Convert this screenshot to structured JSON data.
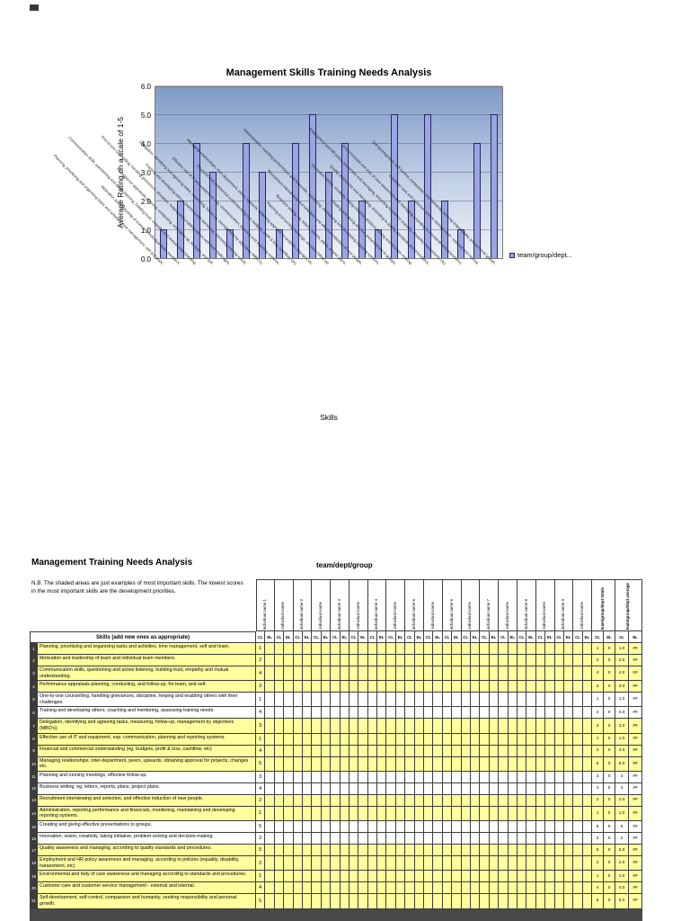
{
  "chart": {
    "legend": {
      "label": "team/group/dept...",
      "swatch_color": "#9aa5e3"
    }
  },
  "chart_data": {
    "type": "bar",
    "title": "Management Skills Training Needs Analysis",
    "xlabel": "Skills",
    "ylabel": "Average Rating on a scale of 1-5",
    "ylim": [
      0,
      6
    ],
    "ytick_labels": [
      "0.0",
      "1.0",
      "2.0",
      "3.0",
      "4.0",
      "5.0",
      "6.0"
    ],
    "grid": true,
    "legend_position": "right",
    "bar_color": "#9aa5e3",
    "series": [
      {
        "name": "team/group/dept...",
        "values": [
          1,
          2,
          4,
          3,
          1,
          4,
          3,
          1,
          4,
          5,
          3,
          4,
          2,
          1,
          5,
          2,
          5,
          2,
          1,
          4,
          5
        ]
      }
    ],
    "categories": [
      "Planning, prioritising and organising tasks and activities, time management, self and team.",
      "Motivation and leadership of team and individual team members.",
      "Communication skills, questioning and active listening, building trust, empathy and mutual understanding.",
      "Performance appraisals planning, conducting, and follow-up, for team, and self.",
      "One-to-one counselling, handling grievances, discipline, helping and enabling others with their challenges.",
      "Training and developing others, coaching and mentoring, assessing training needs.",
      "Delegation, identifying and agreeing tasks, measuring, follow-up, management by objectives (MBO's).",
      "Effective use of IT and equipment, esp. communication, planning and reporting systems.",
      "Financial and commercial understanding (eg. budgets, profit & loss, cashflow, etc)",
      "Managing relationships, inter-department, peers, upwards, obtaining approval for projects, changes etc.",
      "Planning and running meetings, effective follow-up.",
      "Business writing, eg. letters, reports, plans, project plans.",
      "Recruitment interviewing and selection, and effective induction of new people.",
      "Administration, reporting performance and financials, monitoring, maintaining and developing reporting systems.",
      "Creating and giving effective presentations to groups.",
      "Innovation, vision, creativity, taking initiative, problem-solving and decision-making.",
      "Quality awareness and managing, according to quality standards and procedures.",
      "Employment and HR policy awareness and managing, according to policies (equality, disability, harassment, etc)",
      "Environmental and duty of care awareness and managing according to standards and procedures.",
      "Customer care and customer service management - external and internal.",
      "Self-development, self-control, compassion and humanity, seeking responsibility and personal growth."
    ]
  },
  "table": {
    "title": "Management Training Needs Analysis",
    "group_header": "team/dept/group",
    "note": "N.B. The shaded areas are just examples of most important skills. The lowest scores in the most important skills are the development priorities.",
    "skills_header": "Skills (add new ones as appropriate)",
    "sub_headers": [
      "CL",
      "EL"
    ],
    "individual_columns": [
      "individual name 1",
      "individual name",
      "individual name 2",
      "individual name",
      "individual name 3",
      "individual name",
      "individual name 4",
      "individual name",
      "individual name 5",
      "individual name",
      "individual name 6",
      "individual name",
      "individual name 7",
      "individual name",
      "individual name 8",
      "individual name",
      "individual name 9",
      "individual name"
    ],
    "totals_columns": [
      "team/group/dept totals",
      "team/group/dept average"
    ],
    "shaded_color": "#ffff9e",
    "rows": [
      {
        "num": "1",
        "skill": "Planning, prioritising and organising tasks and activities, time management, self and team.",
        "cl": "1",
        "shaded": true,
        "total_cl": "1",
        "total_el": "0",
        "avg_cl": "1.0",
        "avg_el": "##"
      },
      {
        "num": "2",
        "skill": "Motivation and leadership of team and individual team members.",
        "cl": "2",
        "shaded": true,
        "total_cl": "2",
        "total_el": "0",
        "avg_cl": "2.0",
        "avg_el": "##"
      },
      {
        "num": "3",
        "skill": "Communication skills, questioning and active listening, building trust, empathy and mutual understanding.",
        "cl": "4",
        "shaded": true,
        "total_cl": "4",
        "total_el": "0",
        "avg_cl": "4.0",
        "avg_el": "##"
      },
      {
        "num": "4",
        "skill": "Performance appraisals planning, conducting, and follow-up, for team, and self.",
        "cl": "3",
        "shaded": true,
        "total_cl": "3",
        "total_el": "0",
        "avg_cl": "3.0",
        "avg_el": "##"
      },
      {
        "num": "5",
        "skill": "One-to-one counselling, handling grievances, discipline, helping and enabling others with their challenges.",
        "cl": "1",
        "shaded": false,
        "total_cl": "1",
        "total_el": "0",
        "avg_cl": "1.0",
        "avg_el": "##"
      },
      {
        "num": "6",
        "skill": "Training and developing others, coaching and mentoring, assessing training needs.",
        "cl": "4",
        "shaded": false,
        "total_cl": "4",
        "total_el": "0",
        "avg_cl": "4.0",
        "avg_el": "##"
      },
      {
        "num": "7",
        "skill": "Delegation, identifying and agreeing tasks, measuring, follow-up, management by objectives (MBO's).",
        "cl": "3",
        "shaded": true,
        "total_cl": "3",
        "total_el": "0",
        "avg_cl": "3.0",
        "avg_el": "##"
      },
      {
        "num": "8",
        "skill": "Effective use of IT and equipment, esp. communication, planning and reporting systems.",
        "cl": "1",
        "shaded": true,
        "total_cl": "1",
        "total_el": "0",
        "avg_cl": "1.0",
        "avg_el": "##"
      },
      {
        "num": "9",
        "skill": "Financial and commercial understanding (eg. budgets, profit & loss, cashflow, etc)",
        "cl": "4",
        "shaded": true,
        "total_cl": "4",
        "total_el": "0",
        "avg_cl": "4.0",
        "avg_el": "##"
      },
      {
        "num": "10",
        "skill": "Managing relationships, inter-department, peers, upwards, obtaining approval for projects, changes etc.",
        "cl": "5",
        "shaded": true,
        "total_cl": "5",
        "total_el": "0",
        "avg_cl": "5.0",
        "avg_el": "##"
      },
      {
        "num": "11",
        "skill": "Planning and running meetings, effective follow-up.",
        "cl": "3",
        "shaded": false,
        "total_cl": "3",
        "total_el": "0",
        "avg_cl": "3",
        "avg_el": "##"
      },
      {
        "num": "12",
        "skill": "Business writing, eg. letters, reports, plans, project plans.",
        "cl": "4",
        "shaded": false,
        "total_cl": "4",
        "total_el": "0",
        "avg_cl": "4",
        "avg_el": "##"
      },
      {
        "num": "13",
        "skill": "Recruitment interviewing and selection, and effective induction of new people.",
        "cl": "2",
        "shaded": true,
        "total_cl": "2",
        "total_el": "0",
        "avg_cl": "2.0",
        "avg_el": "##"
      },
      {
        "num": "14",
        "skill": "Administration, reporting performance and financials, monitoring, maintaining and developing reporting systems.",
        "cl": "1",
        "shaded": true,
        "total_cl": "1",
        "total_el": "0",
        "avg_cl": "1.0",
        "avg_el": "##"
      },
      {
        "num": "15",
        "skill": "Creating and giving effective presentations to groups.",
        "cl": "5",
        "shaded": false,
        "total_cl": "5",
        "total_el": "0",
        "avg_cl": "5",
        "avg_el": "##"
      },
      {
        "num": "16",
        "skill": "Innovation, vision, creativity, taking initiative, problem-solving and decision-making.",
        "cl": "2",
        "shaded": false,
        "total_cl": "2",
        "total_el": "0",
        "avg_cl": "2",
        "avg_el": "##"
      },
      {
        "num": "17",
        "skill": "Quality awareness and managing, according to quality standards and procedures.",
        "cl": "5",
        "shaded": true,
        "total_cl": "5",
        "total_el": "0",
        "avg_cl": "5.0",
        "avg_el": "##"
      },
      {
        "num": "18",
        "skill": "Employment and HR policy awareness and managing, according to policies (equality, disability, harassment, etc)",
        "cl": "2",
        "shaded": true,
        "total_cl": "2",
        "total_el": "0",
        "avg_cl": "2.0",
        "avg_el": "##"
      },
      {
        "num": "19",
        "skill": "Environmental and duty of care awareness and managing according to standards and procedures.",
        "cl": "1",
        "shaded": true,
        "total_cl": "1",
        "total_el": "0",
        "avg_cl": "1.0",
        "avg_el": "##"
      },
      {
        "num": "20",
        "skill": "Customer care and customer service management - external and internal.",
        "cl": "4",
        "shaded": true,
        "total_cl": "4",
        "total_el": "0",
        "avg_cl": "4.0",
        "avg_el": "##"
      },
      {
        "num": "21",
        "skill": "Self-development, self-control, compassion and humanity, seeking responsibility and personal growth.",
        "cl": "5",
        "shaded": true,
        "total_cl": "5",
        "total_el": "0",
        "avg_cl": "5.0",
        "avg_el": "##"
      }
    ]
  }
}
